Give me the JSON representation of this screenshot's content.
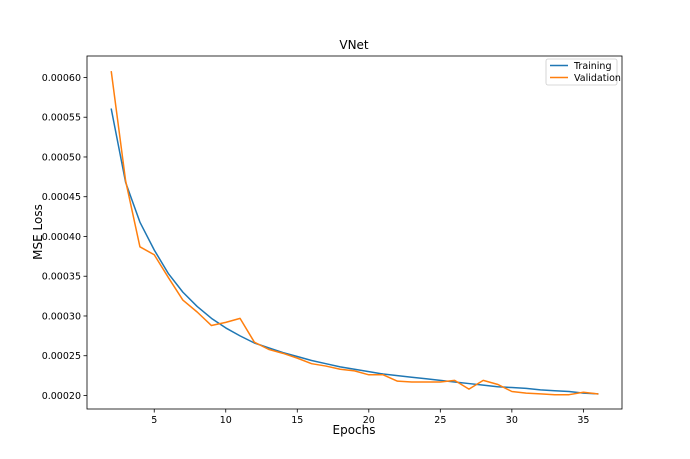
{
  "chart_data": {
    "type": "line",
    "title": "VNet",
    "xlabel": "Epochs",
    "ylabel": "MSE Loss",
    "xlim": [
      0.3,
      37.7
    ],
    "ylim": [
      0.000183,
      0.000627
    ],
    "xticks": [
      5,
      10,
      15,
      20,
      25,
      30,
      35
    ],
    "xtick_labels": [
      "5",
      "10",
      "15",
      "20",
      "25",
      "30",
      "35"
    ],
    "yticks": [
      0.0002,
      0.00025,
      0.0003,
      0.00035,
      0.0004,
      0.00045,
      0.0005,
      0.00055,
      0.0006
    ],
    "ytick_labels": [
      "0.00020",
      "0.00025",
      "0.00030",
      "0.00035",
      "0.00040",
      "0.00045",
      "0.00050",
      "0.00055",
      "0.00060"
    ],
    "grid": false,
    "legend": {
      "placement": "top-right",
      "entries": [
        "Training",
        "Validation"
      ]
    },
    "x": [
      2,
      3,
      4,
      5,
      6,
      7,
      8,
      9,
      10,
      11,
      12,
      13,
      14,
      15,
      16,
      17,
      18,
      19,
      20,
      21,
      22,
      23,
      24,
      25,
      26,
      27,
      28,
      29,
      30,
      31,
      32,
      33,
      34,
      35,
      36
    ],
    "series": [
      {
        "name": "Training",
        "color": "#1f77b4",
        "values": [
          0.00056,
          0.000468,
          0.000418,
          0.000383,
          0.000353,
          0.00033,
          0.000312,
          0.000297,
          0.000285,
          0.000275,
          0.000266,
          0.00026,
          0.000254,
          0.000249,
          0.000244,
          0.00024,
          0.000236,
          0.000233,
          0.00023,
          0.000227,
          0.000225,
          0.000223,
          0.000221,
          0.000219,
          0.000217,
          0.000215,
          0.000213,
          0.000211,
          0.00021,
          0.000209,
          0.000207,
          0.000206,
          0.000205,
          0.000203,
          0.000202
        ]
      },
      {
        "name": "Validation",
        "color": "#ff7f0e",
        "values": [
          0.000607,
          0.00047,
          0.000387,
          0.000377,
          0.000348,
          0.00032,
          0.000305,
          0.000288,
          0.000292,
          0.000297,
          0.000267,
          0.000258,
          0.000253,
          0.000247,
          0.00024,
          0.000237,
          0.000233,
          0.000231,
          0.000226,
          0.000226,
          0.000218,
          0.000217,
          0.000217,
          0.000217,
          0.000219,
          0.000208,
          0.000219,
          0.000214,
          0.000205,
          0.000203,
          0.000202,
          0.000201,
          0.000201,
          0.000204,
          0.000202
        ]
      }
    ]
  }
}
